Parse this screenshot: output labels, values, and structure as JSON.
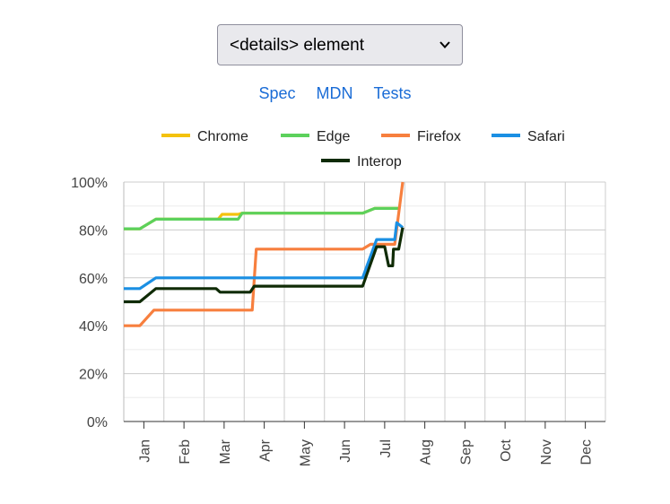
{
  "feature_select": {
    "selected": "<details> element"
  },
  "links": [
    {
      "label": "Spec"
    },
    {
      "label": "MDN"
    },
    {
      "label": "Tests"
    }
  ],
  "colors": {
    "Chrome": "#f4c20d",
    "Edge": "#5cd15c",
    "Firefox": "#f77f3e",
    "Safari": "#1a8fe3",
    "Interop": "#0f2b05",
    "link": "#1a6cd6"
  },
  "chart_data": {
    "type": "line",
    "title": "",
    "xlabel": "",
    "ylabel": "",
    "x_ticks": [
      "Jan",
      "Feb",
      "Mar",
      "Apr",
      "May",
      "Jun",
      "Jul",
      "Aug",
      "Sep",
      "Oct",
      "Nov",
      "Dec"
    ],
    "y_ticks": [
      "0%",
      "20%",
      "40%",
      "60%",
      "80%",
      "100%"
    ],
    "xlim": [
      1,
      13
    ],
    "ylim": [
      0,
      100
    ],
    "grid": true,
    "legend_position": "top",
    "series": [
      {
        "name": "Chrome",
        "color": "#f4c20d",
        "points": [
          [
            1.0,
            80.5
          ],
          [
            1.4,
            80.5
          ],
          [
            1.8,
            84.5
          ],
          [
            3.35,
            84.5
          ],
          [
            3.45,
            86.5
          ],
          [
            3.85,
            86.5
          ],
          [
            3.95,
            87
          ],
          [
            6.95,
            87
          ],
          [
            7.25,
            89
          ],
          [
            7.85,
            89
          ]
        ]
      },
      {
        "name": "Edge",
        "color": "#5cd15c",
        "points": [
          [
            1.0,
            80.5
          ],
          [
            1.4,
            80.5
          ],
          [
            1.8,
            84.5
          ],
          [
            3.75,
            84.5
          ],
          [
            3.85,
            84.5
          ],
          [
            3.95,
            87
          ],
          [
            6.95,
            87
          ],
          [
            7.25,
            89
          ],
          [
            7.85,
            89
          ]
        ]
      },
      {
        "name": "Firefox",
        "color": "#f77f3e",
        "points": [
          [
            1.0,
            40
          ],
          [
            1.4,
            40
          ],
          [
            1.75,
            46.5
          ],
          [
            4.2,
            46.5
          ],
          [
            4.3,
            72
          ],
          [
            6.95,
            72
          ],
          [
            7.15,
            74
          ],
          [
            7.75,
            74
          ],
          [
            7.95,
            100
          ]
        ]
      },
      {
        "name": "Safari",
        "color": "#1a8fe3",
        "points": [
          [
            1.0,
            55.5
          ],
          [
            1.4,
            55.5
          ],
          [
            1.8,
            60
          ],
          [
            6.95,
            60
          ],
          [
            7.3,
            76
          ],
          [
            7.75,
            76
          ],
          [
            7.8,
            83
          ],
          [
            7.95,
            81
          ]
        ]
      },
      {
        "name": "Interop",
        "color": "#0f2b05",
        "points": [
          [
            1.0,
            50
          ],
          [
            1.4,
            50
          ],
          [
            1.8,
            55.5
          ],
          [
            3.3,
            55.5
          ],
          [
            3.4,
            54
          ],
          [
            4.15,
            54
          ],
          [
            4.25,
            56.5
          ],
          [
            6.95,
            56.5
          ],
          [
            7.3,
            73
          ],
          [
            7.5,
            73
          ],
          [
            7.6,
            65
          ],
          [
            7.7,
            65
          ],
          [
            7.72,
            72
          ],
          [
            7.85,
            72
          ],
          [
            7.95,
            81
          ]
        ]
      }
    ]
  }
}
